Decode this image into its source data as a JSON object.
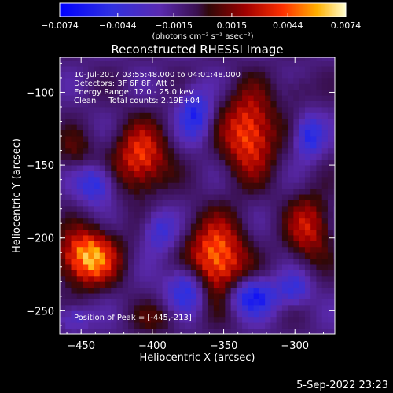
{
  "chart_data": {
    "type": "heatmap",
    "title": "Reconstructed RHESSI Image",
    "xlabel": "Heliocentric X (arcsec)",
    "ylabel": "Heliocentric Y (arcsec)",
    "xlim": [
      -465,
      -272
    ],
    "ylim": [
      -266,
      -76
    ],
    "xticks": [
      -450,
      -400,
      -350,
      -300
    ],
    "yticks": [
      -100,
      -150,
      -200,
      -250
    ],
    "xtick_labels": [
      "−450",
      "−400",
      "−350",
      "−300"
    ],
    "ytick_labels": [
      "−100",
      "−150",
      "−200",
      "−250"
    ],
    "colorbar": {
      "range": [
        -0.0074,
        0.0074
      ],
      "ticks": [
        -0.0074,
        -0.0044,
        -0.0015,
        0.0015,
        0.0044,
        0.0074
      ],
      "tick_labels": [
        "−0.0074",
        "−0.0044",
        "−0.0015",
        "0.0015",
        "0.0044",
        "0.0074"
      ],
      "unit_label": "(photons cm⁻² s⁻¹ asec⁻²)"
    },
    "annotations": [
      "10-Jul-2017 03:55:48.000 to 04:01:48.000",
      "Detectors: 3F 6F 8F, Att 0",
      "Energy Range: 12.0 - 25.0 keV",
      "Clean     Total counts: 2.19E+04"
    ],
    "peak_label": "Position of Peak = [-445,-213]",
    "peak": [
      -445,
      -213
    ],
    "sources": [
      {
        "x": -445,
        "y": -213,
        "sx": 14,
        "sy": 13,
        "amp": 0.0074
      },
      {
        "x": -408,
        "y": -145,
        "sx": 13,
        "sy": 16,
        "amp": 0.0052
      },
      {
        "x": -355,
        "y": -215,
        "sx": 14,
        "sy": 19,
        "amp": 0.0066
      },
      {
        "x": -332,
        "y": -128,
        "sx": 13,
        "sy": 20,
        "amp": 0.0058
      },
      {
        "x": -290,
        "y": -193,
        "sx": 11,
        "sy": 16,
        "amp": 0.004
      },
      {
        "x": -455,
        "y": -140,
        "sx": 10,
        "sy": 10,
        "amp": 0.0018
      },
      {
        "x": -395,
        "y": -255,
        "sx": 14,
        "sy": 8,
        "amp": 0.0016
      },
      {
        "x": -298,
        "y": -98,
        "sx": 8,
        "sy": 8,
        "amp": 0.0012
      },
      {
        "x": -440,
        "y": -163,
        "sx": 9,
        "sy": 9,
        "amp": -0.004
      },
      {
        "x": -375,
        "y": -235,
        "sx": 10,
        "sy": 12,
        "amp": -0.0046
      },
      {
        "x": -330,
        "y": -240,
        "sx": 12,
        "sy": 9,
        "amp": -0.005
      },
      {
        "x": -370,
        "y": -115,
        "sx": 8,
        "sy": 12,
        "amp": -0.0042
      },
      {
        "x": -290,
        "y": -130,
        "sx": 7,
        "sy": 10,
        "amp": -0.0042
      },
      {
        "x": -300,
        "y": -235,
        "sx": 8,
        "sy": 8,
        "amp": -0.003
      },
      {
        "x": -455,
        "y": -255,
        "sx": 8,
        "sy": 6,
        "amp": -0.0025
      },
      {
        "x": -395,
        "y": -195,
        "sx": 8,
        "sy": 10,
        "amp": -0.003
      }
    ]
  },
  "timestamp": "5-Sep-2022 23:23"
}
